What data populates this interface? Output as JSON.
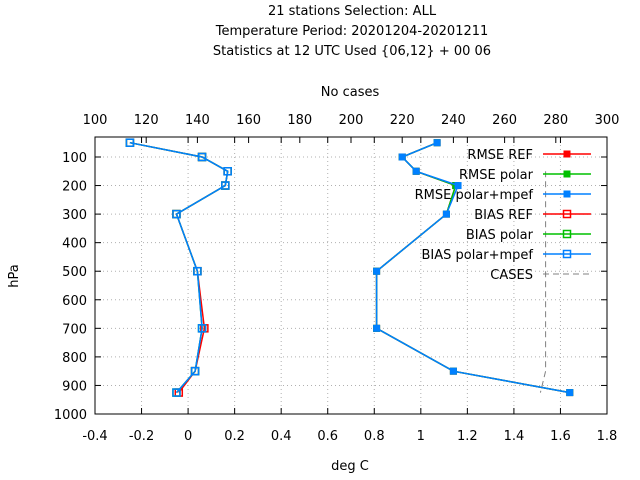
{
  "title_lines": [
    "21 stations Selection: ALL",
    "Temperature  Period: 20201204-20201211",
    "Statistics at 12 UTC  Used {06,12} + 00 06"
  ],
  "colors": {
    "ref": "#ff0000",
    "polar": "#00c000",
    "mpef": "#0080ff",
    "cases": "#808080",
    "grid": "#b0b0b0"
  },
  "chart_data": {
    "type": "line",
    "xlabel": "deg C",
    "ylabel": "hPa",
    "x2label": "No cases",
    "xlim": [
      -0.4,
      1.8
    ],
    "x2lim": [
      100,
      300
    ],
    "ylim": [
      1000,
      30
    ],
    "y_reversed": true,
    "xticks": [
      "-0.4",
      "-0.2",
      "0",
      "0.2",
      "0.4",
      "0.6",
      "0.8",
      "1",
      "1.2",
      "1.4",
      "1.6",
      "1.8"
    ],
    "x2ticks": [
      "100",
      "120",
      "140",
      "160",
      "180",
      "200",
      "220",
      "240",
      "260",
      "280",
      "300"
    ],
    "yticks": [
      "100",
      "200",
      "300",
      "400",
      "500",
      "600",
      "700",
      "800",
      "900",
      "1000"
    ],
    "legend_position": "top-right",
    "levels": [
      50,
      100,
      150,
      200,
      300,
      500,
      700,
      850,
      925
    ],
    "series": [
      {
        "name": "RMSE REF",
        "color_key": "ref",
        "marker": "filled",
        "axis": "x1",
        "x": [
          1.07,
          0.92,
          0.98,
          1.15,
          1.11,
          0.81,
          0.81,
          1.14,
          1.64
        ],
        "y": [
          50,
          100,
          150,
          200,
          300,
          500,
          700,
          850,
          925
        ]
      },
      {
        "name": "RMSE polar",
        "color_key": "polar",
        "marker": "filled",
        "axis": "x1",
        "x": [
          1.07,
          0.92,
          0.98,
          1.15,
          1.11,
          0.81,
          0.81,
          1.14,
          1.64
        ],
        "y": [
          50,
          100,
          150,
          200,
          300,
          500,
          700,
          850,
          925
        ]
      },
      {
        "name": "RMSE polar+mpef",
        "color_key": "mpef",
        "marker": "filled",
        "axis": "x1",
        "x": [
          1.07,
          0.92,
          0.98,
          1.16,
          1.11,
          0.81,
          0.81,
          1.14,
          1.64
        ],
        "y": [
          50,
          100,
          150,
          200,
          300,
          500,
          700,
          850,
          925
        ]
      },
      {
        "name": "BIAS REF",
        "color_key": "ref",
        "marker": "open",
        "axis": "x1",
        "x": [
          -0.25,
          0.06,
          0.17,
          0.16,
          -0.05,
          0.04,
          0.07,
          0.03,
          -0.04
        ],
        "y": [
          50,
          100,
          150,
          200,
          300,
          500,
          700,
          850,
          925
        ]
      },
      {
        "name": "BIAS polar",
        "color_key": "polar",
        "marker": "open",
        "axis": "x1",
        "x": [
          -0.25,
          0.06,
          0.17,
          0.16,
          -0.05,
          0.04,
          0.06,
          0.03,
          -0.05
        ],
        "y": [
          50,
          100,
          150,
          200,
          300,
          500,
          700,
          850,
          925
        ]
      },
      {
        "name": "BIAS polar+mpef",
        "color_key": "mpef",
        "marker": "open",
        "axis": "x1",
        "x": [
          -0.25,
          0.06,
          0.17,
          0.16,
          -0.05,
          0.04,
          0.06,
          0.03,
          -0.05
        ],
        "y": [
          50,
          100,
          150,
          200,
          300,
          500,
          700,
          850,
          925
        ]
      },
      {
        "name": "CASES",
        "color_key": "cases",
        "marker": "none",
        "axis": "x2",
        "dashed": true,
        "x": [
          276,
          276,
          276,
          276,
          276,
          276,
          276,
          276,
          276,
          274
        ],
        "y": [
          150,
          200,
          300,
          400,
          500,
          600,
          700,
          800,
          850,
          925
        ]
      }
    ]
  }
}
